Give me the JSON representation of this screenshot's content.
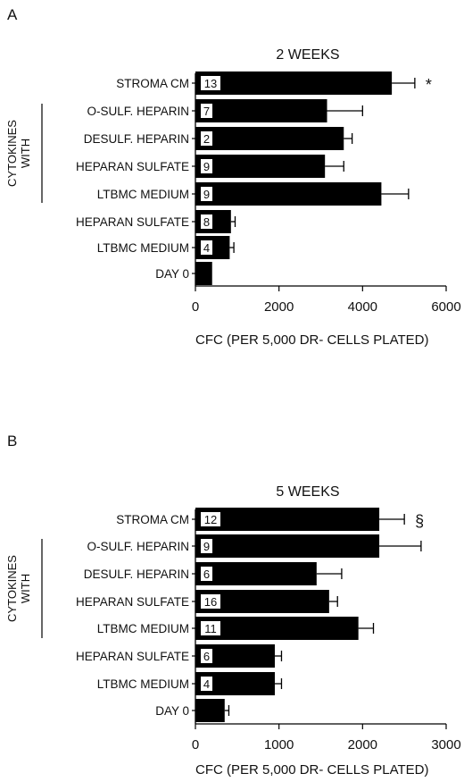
{
  "group_label": [
    "CYTOKINES",
    "WITH"
  ],
  "chart_data": [
    {
      "type": "bar",
      "orientation": "horizontal",
      "panel": "A",
      "title": "2 WEEKS",
      "xlabel": "CFC (PER 5,000 DR- CELLS PLATED)",
      "xlim": [
        0,
        6000
      ],
      "xticks": [
        0,
        2000,
        4000,
        6000
      ],
      "categories": [
        "STROMA CM",
        "O-SULF. HEPARIN",
        "DESULF. HEPARIN",
        "HEPARAN SULFATE",
        "LTBMC MEDIUM",
        "HEPARAN SULFATE",
        "LTBMC MEDIUM",
        "DAY 0"
      ],
      "values": [
        4700,
        3150,
        3550,
        3100,
        4450,
        850,
        820,
        400
      ],
      "errors": [
        550,
        850,
        200,
        450,
        650,
        100,
        100,
        0
      ],
      "n_labels": [
        "13",
        "7",
        "2",
        "9",
        "9",
        "8",
        "4",
        ""
      ],
      "annotations": [
        "*",
        "",
        "",
        "",
        "",
        "",
        "",
        ""
      ],
      "bar_color": "#000000"
    },
    {
      "type": "bar",
      "orientation": "horizontal",
      "panel": "B",
      "title": "5 WEEKS",
      "xlabel": "CFC (PER 5,000 DR- CELLS PLATED)",
      "xlim": [
        0,
        3000
      ],
      "xticks": [
        0,
        1000,
        2000,
        3000
      ],
      "categories": [
        "STROMA CM",
        "O-SULF. HEPARIN",
        "DESULF. HEPARIN",
        "HEPARAN SULFATE",
        "LTBMC MEDIUM",
        "HEPARAN SULFATE",
        "LTBMC MEDIUM",
        "DAY 0"
      ],
      "values": [
        2200,
        2200,
        1450,
        1600,
        1950,
        950,
        950,
        350
      ],
      "errors": [
        300,
        500,
        300,
        100,
        180,
        80,
        80,
        50
      ],
      "n_labels": [
        "12",
        "9",
        "6",
        "16",
        "11",
        "6",
        "4",
        ""
      ],
      "annotations": [
        "§",
        "",
        "",
        "",
        "",
        "",
        "",
        ""
      ],
      "bar_color": "#000000"
    }
  ]
}
